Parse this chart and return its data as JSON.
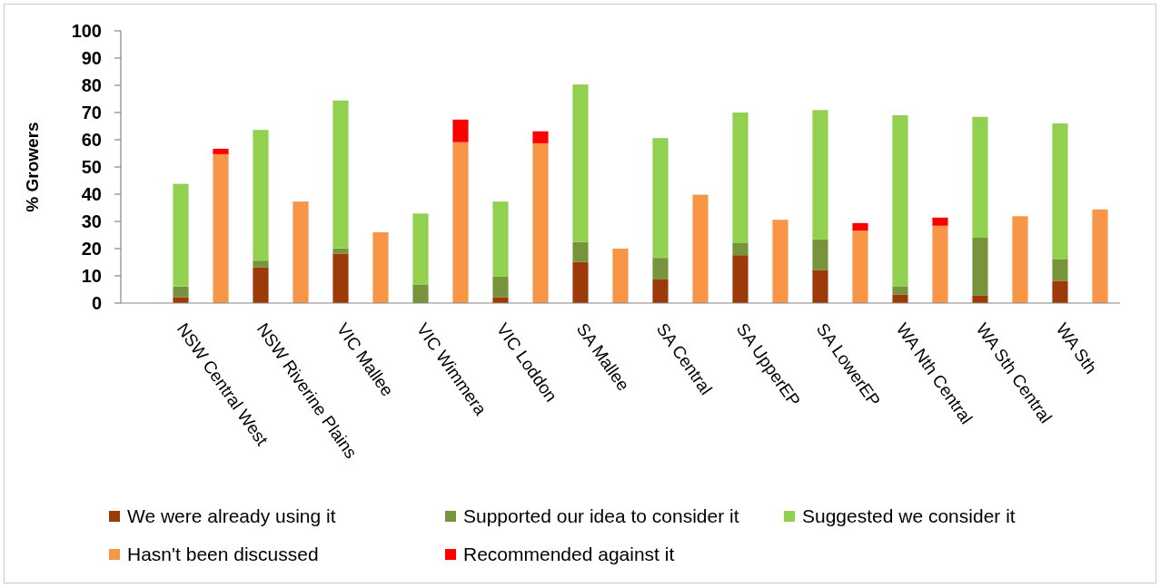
{
  "chart_data": {
    "type": "bar",
    "stacked": true,
    "ylabel": "% Growers",
    "categories": [
      null,
      "NSW Central West",
      null,
      "NSW Riverine Plains",
      null,
      "VIC Mallee",
      null,
      "VIC Wimmera",
      null,
      "VIC Loddon",
      null,
      "SA Mallee",
      null,
      "SA Central",
      null,
      "SA UpperEP",
      null,
      "SA LowerEP",
      null,
      "WA Nth Central",
      null,
      "WA Sth Central",
      null,
      "WA Sth",
      null
    ],
    "series": [
      {
        "name": "We were already using it",
        "color": "#9c3a0a",
        "values": [
          null,
          2.2,
          null,
          13.2,
          null,
          18.2,
          null,
          0,
          null,
          2.2,
          null,
          15.1,
          null,
          8.7,
          null,
          17.6,
          null,
          12.2,
          null,
          3.2,
          null,
          2.7,
          null,
          8.2,
          null
        ]
      },
      {
        "name": "Supported our idea to consider it",
        "color": "#77933c",
        "values": [
          null,
          3.9,
          null,
          2.4,
          null,
          1.9,
          null,
          6.7,
          null,
          7.5,
          null,
          7.3,
          null,
          7.9,
          null,
          4.4,
          null,
          11.2,
          null,
          3.0,
          null,
          21.3,
          null,
          7.8,
          null
        ]
      },
      {
        "name": "Suggested we consider it",
        "color": "#92d050",
        "values": [
          null,
          37.7,
          null,
          48.0,
          null,
          54.3,
          null,
          26.2,
          null,
          27.6,
          null,
          57.9,
          null,
          44.0,
          null,
          48.0,
          null,
          47.5,
          null,
          62.8,
          null,
          44.4,
          null,
          50.0,
          null
        ]
      },
      {
        "name": "Hasn't been discussed",
        "color": "#f79646",
        "values": [
          null,
          null,
          54.7,
          null,
          37.3,
          null,
          26.0,
          null,
          59.1,
          null,
          58.7,
          null,
          20.0,
          null,
          39.8,
          null,
          30.6,
          null,
          26.6,
          null,
          28.4,
          null,
          31.9,
          null,
          34.4
        ]
      },
      {
        "name": "Recommended against it",
        "color": "#ff0000",
        "values": [
          null,
          null,
          2.0,
          null,
          0,
          null,
          0,
          null,
          8.3,
          null,
          4.4,
          null,
          0,
          null,
          0,
          null,
          0,
          null,
          2.8,
          null,
          3.0,
          null,
          0,
          null,
          0
        ]
      }
    ],
    "ylim": [
      0,
      100
    ],
    "yticks": [
      0,
      10,
      20,
      30,
      40,
      50,
      60,
      70,
      80,
      90,
      100
    ],
    "legend": "bottom"
  }
}
